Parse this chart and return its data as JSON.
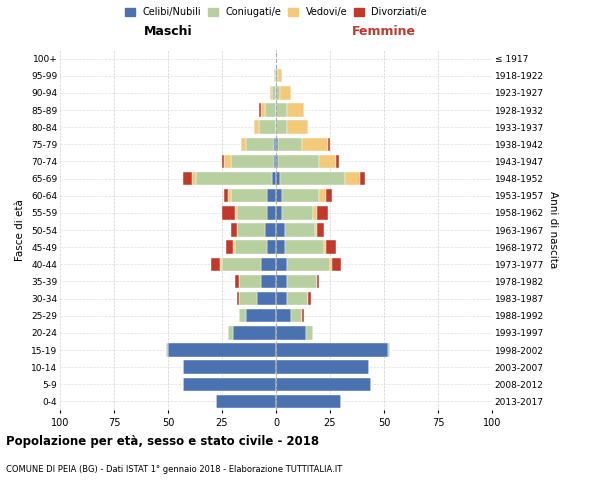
{
  "age_groups": [
    "0-4",
    "5-9",
    "10-14",
    "15-19",
    "20-24",
    "25-29",
    "30-34",
    "35-39",
    "40-44",
    "45-49",
    "50-54",
    "55-59",
    "60-64",
    "65-69",
    "70-74",
    "75-79",
    "80-84",
    "85-89",
    "90-94",
    "95-99",
    "100+"
  ],
  "birth_years": [
    "2013-2017",
    "2008-2012",
    "2003-2007",
    "1998-2002",
    "1993-1997",
    "1988-1992",
    "1983-1987",
    "1978-1982",
    "1973-1977",
    "1968-1972",
    "1963-1967",
    "1958-1962",
    "1953-1957",
    "1948-1952",
    "1943-1947",
    "1938-1942",
    "1933-1937",
    "1928-1932",
    "1923-1927",
    "1918-1922",
    "≤ 1917"
  ],
  "males": {
    "celibi": [
      28,
      43,
      43,
      50,
      20,
      14,
      9,
      7,
      7,
      4,
      5,
      4,
      4,
      2,
      1,
      1,
      0,
      0,
      0,
      0,
      0
    ],
    "coniugati": [
      0,
      0,
      0,
      1,
      2,
      3,
      8,
      10,
      18,
      15,
      13,
      14,
      17,
      35,
      20,
      13,
      8,
      5,
      2,
      1,
      0
    ],
    "vedovi": [
      0,
      0,
      0,
      0,
      0,
      0,
      0,
      0,
      1,
      1,
      0,
      1,
      1,
      2,
      3,
      2,
      2,
      2,
      1,
      0,
      0
    ],
    "divorziati": [
      0,
      0,
      0,
      0,
      0,
      0,
      1,
      2,
      4,
      3,
      3,
      6,
      2,
      4,
      1,
      0,
      0,
      1,
      0,
      0,
      0
    ]
  },
  "females": {
    "nubili": [
      30,
      44,
      43,
      52,
      14,
      7,
      5,
      5,
      5,
      4,
      4,
      3,
      3,
      2,
      1,
      1,
      0,
      0,
      0,
      0,
      0
    ],
    "coniugate": [
      0,
      0,
      0,
      1,
      3,
      5,
      10,
      14,
      20,
      18,
      14,
      14,
      17,
      30,
      19,
      11,
      5,
      5,
      2,
      1,
      0
    ],
    "vedove": [
      0,
      0,
      0,
      0,
      0,
      0,
      0,
      0,
      1,
      1,
      1,
      2,
      3,
      7,
      8,
      12,
      10,
      8,
      5,
      2,
      0
    ],
    "divorziate": [
      0,
      0,
      0,
      0,
      0,
      1,
      1,
      1,
      4,
      5,
      3,
      5,
      3,
      2,
      1,
      1,
      0,
      0,
      0,
      0,
      0
    ]
  },
  "colors": {
    "celibi": "#4a72b0",
    "coniugati": "#b8cfa0",
    "vedovi": "#f5c97a",
    "divorziati": "#c0392b"
  },
  "title": "Popolazione per età, sesso e stato civile - 2018",
  "subtitle": "COMUNE DI PEIA (BG) - Dati ISTAT 1° gennaio 2018 - Elaborazione TUTTITALIA.IT",
  "xlabel_left": "Maschi",
  "xlabel_right": "Femmine",
  "ylabel_left": "Fasce di età",
  "ylabel_right": "Anni di nascita",
  "xlim": 100,
  "legend_labels": [
    "Celibi/Nubili",
    "Coniugati/e",
    "Vedovi/e",
    "Divorziati/e"
  ],
  "bg_color": "#ffffff",
  "grid_color": "#cccccc",
  "femmine_color": "#c0392b"
}
